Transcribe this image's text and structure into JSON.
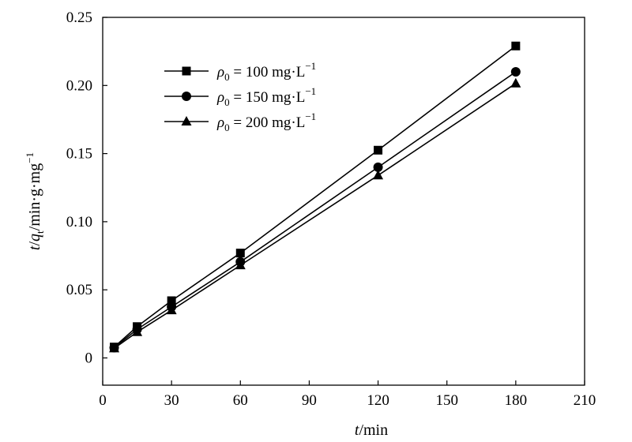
{
  "chart_data": {
    "type": "line",
    "x": [
      5,
      15,
      30,
      60,
      120,
      180
    ],
    "series": [
      {
        "name": "ρ0 = 100 mg·L−1",
        "marker": "square",
        "values": [
          0.008,
          0.023,
          0.042,
          0.077,
          0.1525,
          0.229
        ]
      },
      {
        "name": "ρ0 = 150 mg·L−1",
        "marker": "circle",
        "values": [
          0.0075,
          0.021,
          0.0375,
          0.0705,
          0.14,
          0.21
        ]
      },
      {
        "name": "ρ0 = 200 mg·L−1",
        "marker": "triangle",
        "values": [
          0.007,
          0.019,
          0.035,
          0.068,
          0.134,
          0.2015
        ]
      }
    ],
    "xlabel": "t/min",
    "ylabel": "t/qt/min·g·mg−1",
    "xlim": [
      0,
      210
    ],
    "ylim": [
      -0.02,
      0.25
    ],
    "xticks": [
      0,
      30,
      60,
      90,
      120,
      150,
      180,
      210
    ],
    "xtick_labels": [
      "0",
      "30",
      "60",
      "90",
      "120",
      "150",
      "180",
      "210"
    ],
    "yticks": [
      0,
      0.05,
      0.1,
      0.15,
      0.2,
      0.25
    ],
    "ytick_labels": [
      "0",
      "0.05",
      "0.10",
      "0.15",
      "0.20",
      "0.25"
    ],
    "grid": false,
    "legend": "top-left",
    "colors": {
      "line": "#000000",
      "marker": "#000000"
    }
  }
}
